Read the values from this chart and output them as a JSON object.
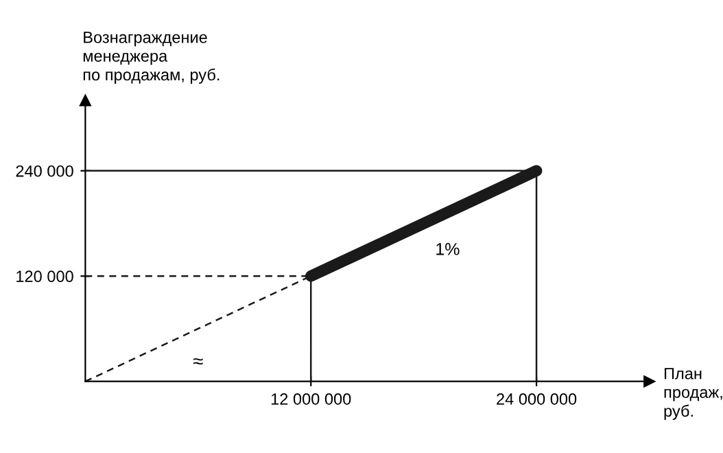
{
  "chart_data": {
    "type": "line",
    "xlabel": "План\nпродаж,\nруб.",
    "ylabel": "Вознаграждение\nменеджера\nпо продажам, руб.",
    "series": [
      {
        "color": "#1a1a1a",
        "x": [
          12000000,
          24000000
        ],
        "values": [
          120000,
          240000
        ],
        "line_style": "solid"
      },
      {
        "color": "#1a1a1a",
        "x": [
          0,
          12000000
        ],
        "values": [
          0,
          120000
        ],
        "line_style": "dashed"
      },
      {
        "color": "#1a1a1a",
        "x": [
          0,
          12000000
        ],
        "values": [
          120000,
          120000
        ],
        "line_style": "dashed"
      },
      {
        "color": "#1a1a1a",
        "x": [
          12000000,
          12000000
        ],
        "values": [
          0,
          120000
        ],
        "line_style": "solid"
      },
      {
        "color": "#1a1a1a",
        "x": [
          0,
          24000000
        ],
        "values": [
          240000,
          240000
        ],
        "line_style": "solid"
      },
      {
        "color": "#1a1a1a",
        "x": [
          24000000,
          24000000
        ],
        "values": [
          0,
          240000
        ],
        "line_style": "solid"
      }
    ],
    "annotations": [
      {
        "text": "1%",
        "x": 18000000,
        "y": 180000
      },
      "≈"
    ],
    "xlim": [
      0,
      30000000
    ],
    "ylim": [
      0,
      320000
    ],
    "xticks": [
      {
        "value": 12000000,
        "label": "12 000 000"
      },
      {
        "value": 24000000,
        "label": "24 000 000"
      }
    ],
    "yticks": [
      {
        "value": 120000,
        "label": "120 000"
      },
      {
        "value": 240000,
        "label": "240 000"
      }
    ],
    "grid": false,
    "legend": false,
    "marker": "none"
  }
}
